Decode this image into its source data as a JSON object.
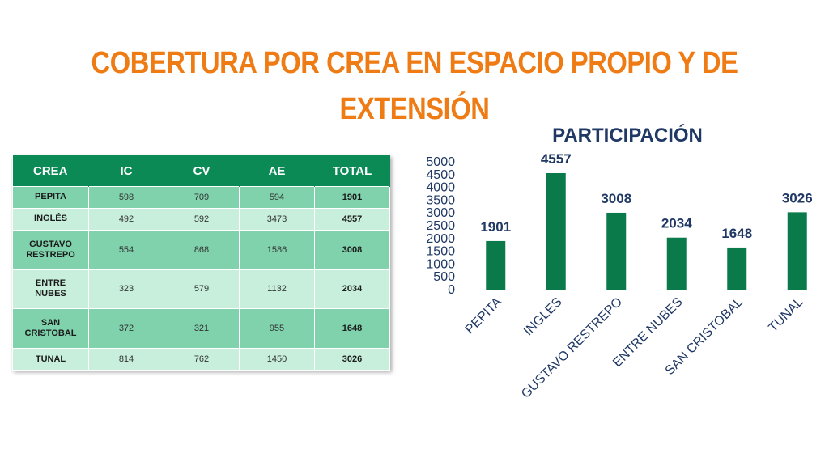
{
  "title": {
    "line1": "COBERTURA POR CREA EN ESPACIO PROPIO Y DE",
    "line2": "EXTENSIÓN"
  },
  "table": {
    "headers": [
      "CREA",
      "IC",
      "CV",
      "AE",
      "TOTAL"
    ],
    "rows": [
      {
        "crea": "PEPITA",
        "ic": "598",
        "cv": "709",
        "ae": "594",
        "total": "1901"
      },
      {
        "crea": "INGLÉS",
        "ic": "492",
        "cv": "592",
        "ae": "3473",
        "total": "4557"
      },
      {
        "crea": "GUSTAVO\nRESTREPO",
        "ic": "554",
        "cv": "868",
        "ae": "1586",
        "total": "3008"
      },
      {
        "crea": "ENTRE\nNUBES",
        "ic": "323",
        "cv": "579",
        "ae": "1132",
        "total": "2034"
      },
      {
        "crea": "SAN\nCRISTOBAL",
        "ic": "372",
        "cv": "321",
        "ae": "955",
        "total": "1648"
      },
      {
        "crea": "TUNAL",
        "ic": "814",
        "cv": "762",
        "ae": "1450",
        "total": "3026"
      }
    ],
    "colors": {
      "header": "#0b8a56",
      "row_dark": "#7fd2ac",
      "row_light": "#c7efdc"
    }
  },
  "chart_data": {
    "type": "bar",
    "title": "PARTICIPACIÓN",
    "categories": [
      "PEPITA",
      "INGLÉS",
      "GUSTAVO RESTREPO",
      "ENTRE NUBES",
      "SAN CRISTOBAL",
      "TUNAL"
    ],
    "values": [
      1901,
      4557,
      3008,
      2034,
      1648,
      3026
    ],
    "ylim": [
      0,
      5000
    ],
    "yticks": [
      0,
      500,
      1000,
      1500,
      2000,
      2500,
      3000,
      3500,
      4000,
      4500,
      5000
    ],
    "grid": false,
    "data_labels": true,
    "bar_color": "#0b7a4b",
    "label_color": "#1f3864"
  }
}
